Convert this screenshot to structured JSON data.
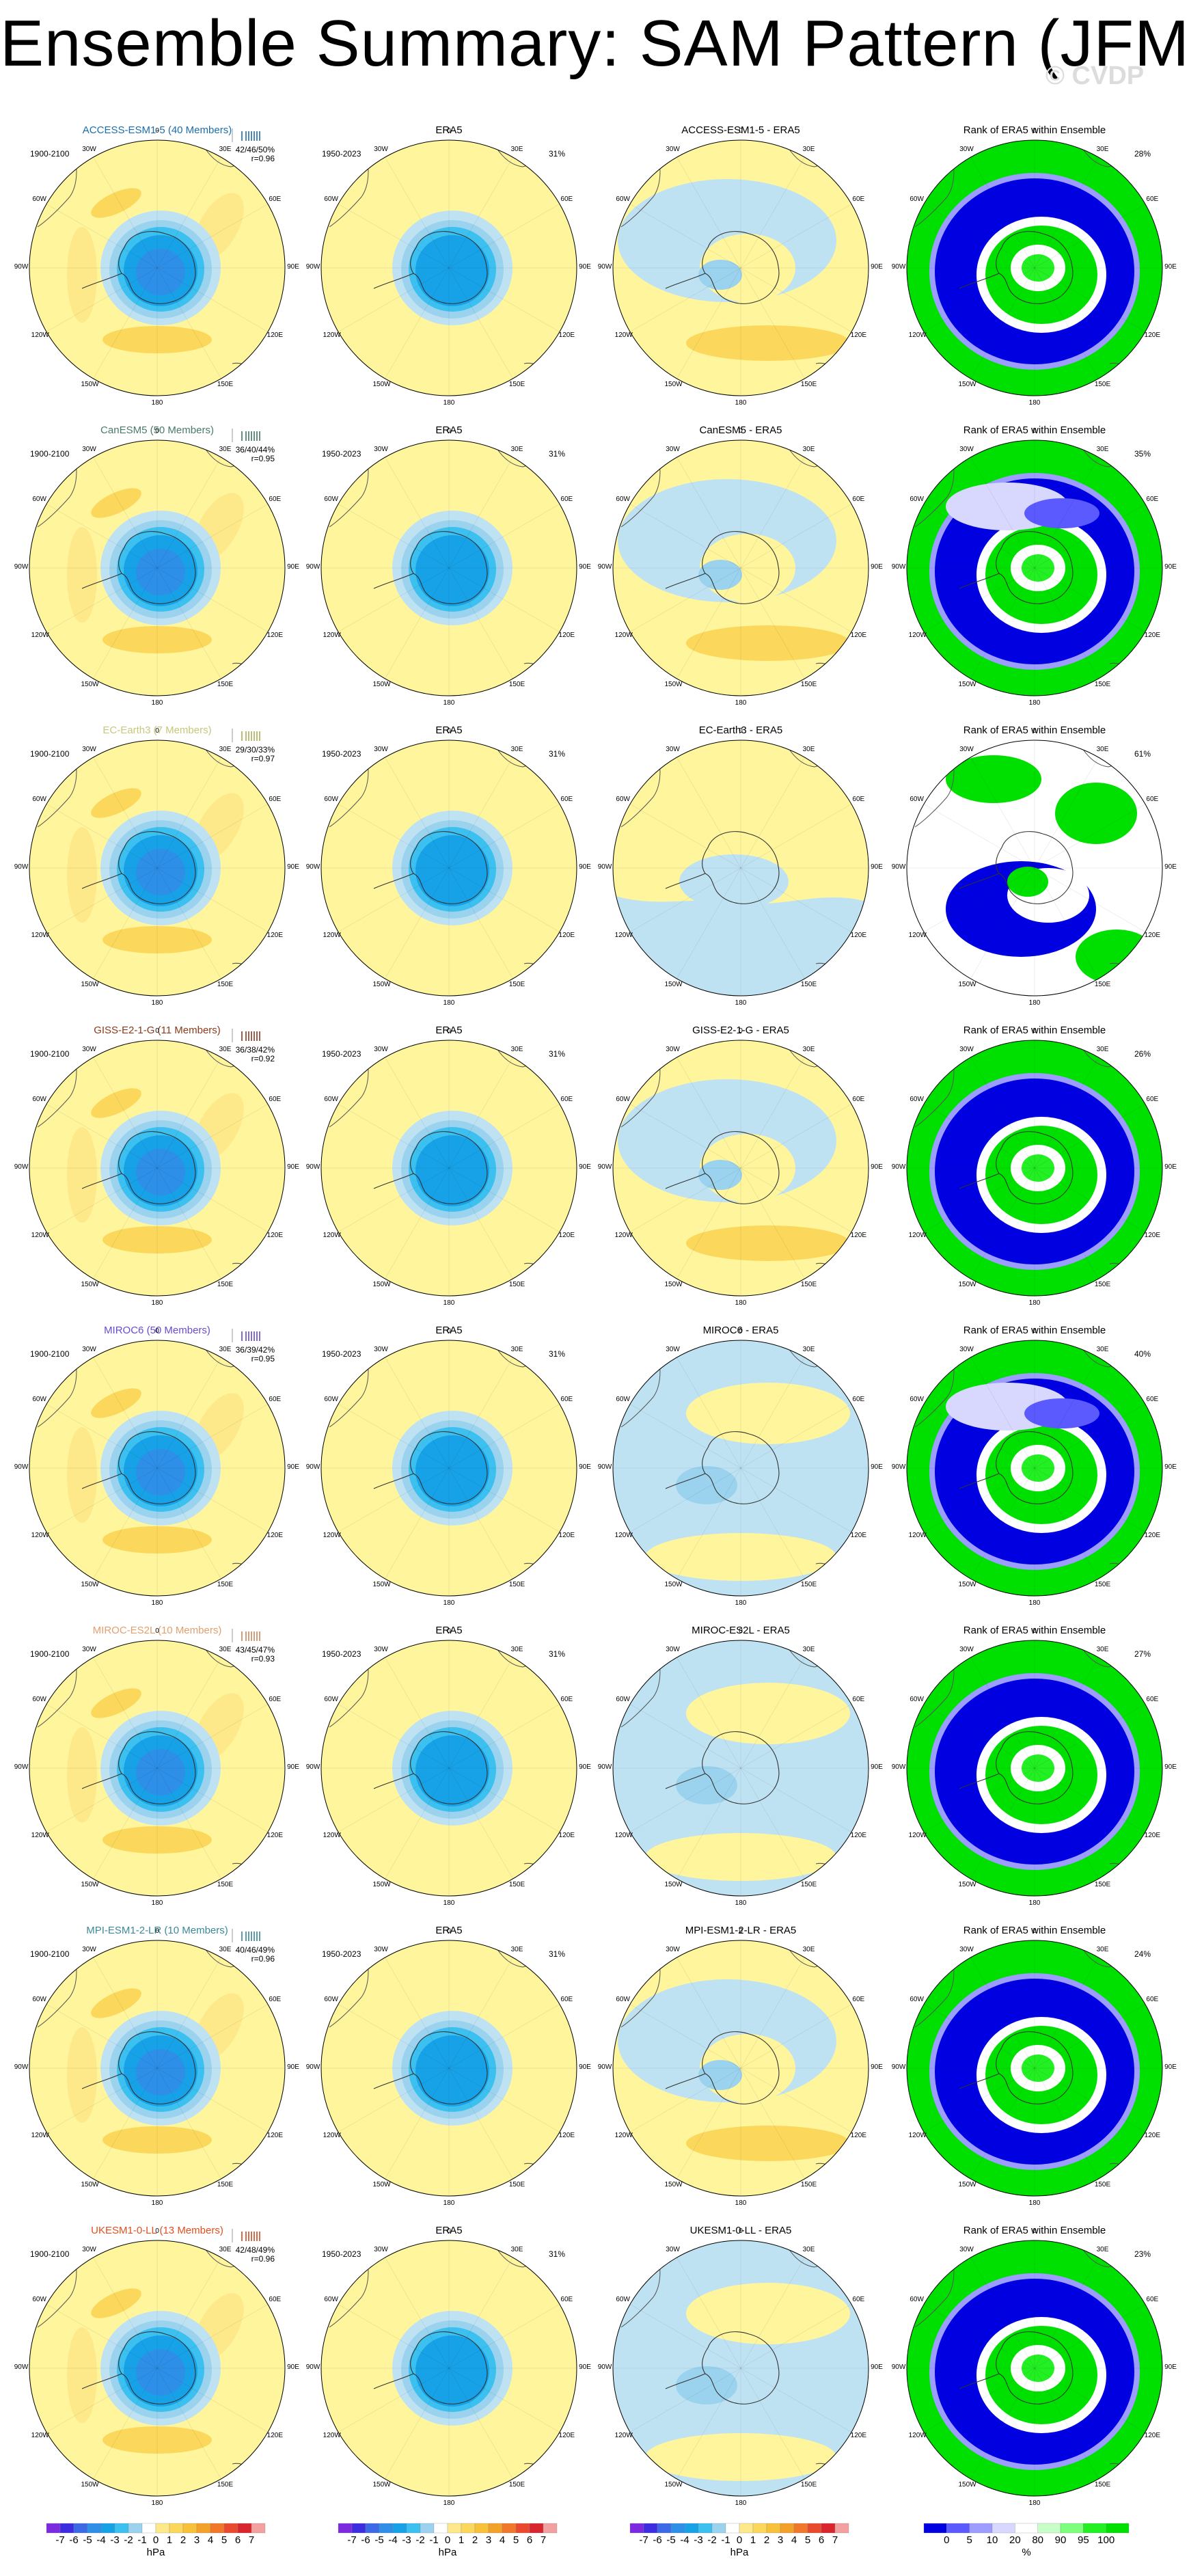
{
  "title": "Ensemble Summary: SAM Pattern (JFM)",
  "watermark": "© CVDP",
  "obs_name": "ERA5",
  "obs_period": "1950-2023",
  "obs_pct": "31%",
  "rank_title": "Rank of ERA5 within Ensemble",
  "model_period": "1900-2100",
  "map_labels": {
    "lat": [
      "0",
      "30E",
      "60E",
      "90E",
      "120E",
      "150E",
      "180",
      "150W",
      "120W",
      "90W",
      "60W",
      "30W"
    ]
  },
  "colors": {
    "cool": [
      "#7b2ae0",
      "#3c2ee0",
      "#3c6ae6",
      "#2e8fe8",
      "#17a2e8",
      "#3cc0f0",
      "#9bd3ef",
      "#bfe2f3"
    ],
    "warm": [
      "#fff59d",
      "#fde98a",
      "#fbd85c",
      "#f7c23a",
      "#f4a12a",
      "#f1772a",
      "#e94a2e",
      "#d9262e",
      "#f2a0a0"
    ],
    "rank": [
      "#0000e0",
      "#5a5aff",
      "#9d9dff",
      "#d8d8ff",
      "#ffffff",
      "#c8ffc8",
      "#7dff7d",
      "#22f022",
      "#00e000"
    ]
  },
  "rows": [
    {
      "model": "ACCESS-ESM1-5",
      "title": "ACCESS-ESM1-5 (40 Members)",
      "diff_title": "ACCESS-ESM1-5 - ERA5",
      "stat1": "42/46/50%",
      "stat2": "r=0.96",
      "rank_pct": "28%",
      "color": "#1a6eae",
      "tint": "#0f5f9f",
      "diff_style": "mixed",
      "rank_style": "ringA"
    },
    {
      "model": "CanESM5",
      "title": "CanESM5 (50 Members)",
      "diff_title": "CanESM5 - ERA5",
      "stat1": "36/40/44%",
      "stat2": "r=0.95",
      "rank_pct": "35%",
      "color": "#4a7a6a",
      "tint": "#316a55",
      "diff_style": "mixed",
      "rank_style": "ringB"
    },
    {
      "model": "EC-Earth3",
      "title": "EC-Earth3 (7 Members)",
      "diff_title": "EC-Earth3 - ERA5",
      "stat1": "29/30/33%",
      "stat2": "r=0.97",
      "rank_pct": "61%",
      "color": "#c9c77a",
      "tint": "#a7a54a",
      "diff_style": "yellow",
      "rank_style": "white"
    },
    {
      "model": "GISS-E2-1-G",
      "title": "GISS-E2-1-G (11 Members)",
      "diff_title": "GISS-E2-1-G - ERA5",
      "stat1": "36/38/42%",
      "stat2": "r=0.92",
      "rank_pct": "26%",
      "color": "#8a3a1a",
      "tint": "#7a2a10",
      "diff_style": "mixed",
      "rank_style": "ringA"
    },
    {
      "model": "MIROC6",
      "title": "MIROC6 (50 Members)",
      "diff_title": "MIROC6 - ERA5",
      "stat1": "36/39/42%",
      "stat2": "r=0.95",
      "rank_pct": "40%",
      "color": "#6a4ad0",
      "tint": "#5a3ac0",
      "diff_style": "blue",
      "rank_style": "ringB"
    },
    {
      "model": "MIROC-ES2L",
      "title": "MIROC-ES2L (10 Members)",
      "diff_title": "MIROC-ES2L - ERA5",
      "stat1": "43/45/47%",
      "stat2": "r=0.93",
      "rank_pct": "27%",
      "color": "#e0a070",
      "tint": "#c08050",
      "diff_style": "blue",
      "rank_style": "ringA"
    },
    {
      "model": "MPI-ESM1-2-LR",
      "title": "MPI-ESM1-2-LR (10 Members)",
      "diff_title": "MPI-ESM1-2-LR - ERA5",
      "stat1": "40/46/49%",
      "stat2": "r=0.96",
      "rank_pct": "24%",
      "color": "#3a8a9a",
      "tint": "#2a7a8a",
      "diff_style": "mixed",
      "rank_style": "ringA"
    },
    {
      "model": "UKESM1-0-LL",
      "title": "UKESM1-0-LL (13 Members)",
      "diff_title": "UKESM1-0-LL - ERA5",
      "stat1": "42/48/49%",
      "stat2": "r=0.96",
      "rank_pct": "23%",
      "color": "#e05020",
      "tint": "#c04010",
      "diff_style": "blue",
      "rank_style": "ringA"
    }
  ],
  "colorbar": {
    "hpa_labels": [
      "-7",
      "-6",
      "-5",
      "-4",
      "-3",
      "-2",
      "-1",
      "0",
      "1",
      "2",
      "3",
      "4",
      "5",
      "6",
      "7"
    ],
    "hpa_unit": "hPa",
    "rank_labels": [
      "0",
      "5",
      "10",
      "20",
      "80",
      "90",
      "95",
      "100"
    ],
    "rank_unit": "%"
  }
}
